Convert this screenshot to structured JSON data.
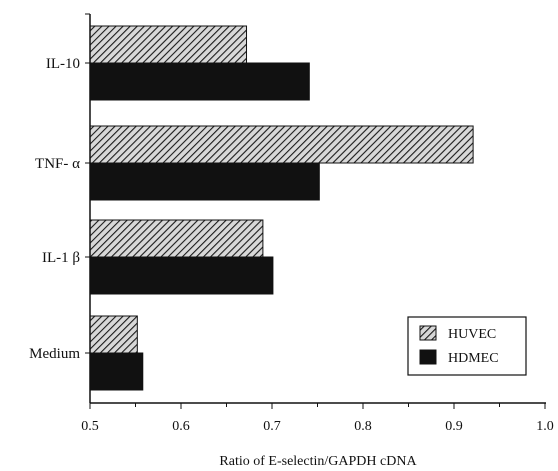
{
  "chart_data": {
    "type": "bar",
    "orientation": "horizontal",
    "categories": [
      "IL-10",
      "TNF- α",
      "IL-1 β",
      "Medium"
    ],
    "series": [
      {
        "name": "HUVEC",
        "values": [
          0.672,
          0.921,
          0.69,
          0.552
        ],
        "color": "#8a8a8a",
        "pattern": "diagonal-hatch"
      },
      {
        "name": "HDMEC",
        "values": [
          0.741,
          0.752,
          0.701,
          0.558
        ],
        "color": "#111111",
        "pattern": "solid"
      }
    ],
    "xlabel": "Ratio of E-selectin/GAPDH cDNA",
    "ylabel": "",
    "xlim": [
      0.5,
      1.0
    ],
    "xticks": [
      "0.5",
      "0.6",
      "0.7",
      "0.8",
      "0.9",
      "1.0"
    ],
    "grid": false,
    "legend_position": "bottom-right"
  }
}
